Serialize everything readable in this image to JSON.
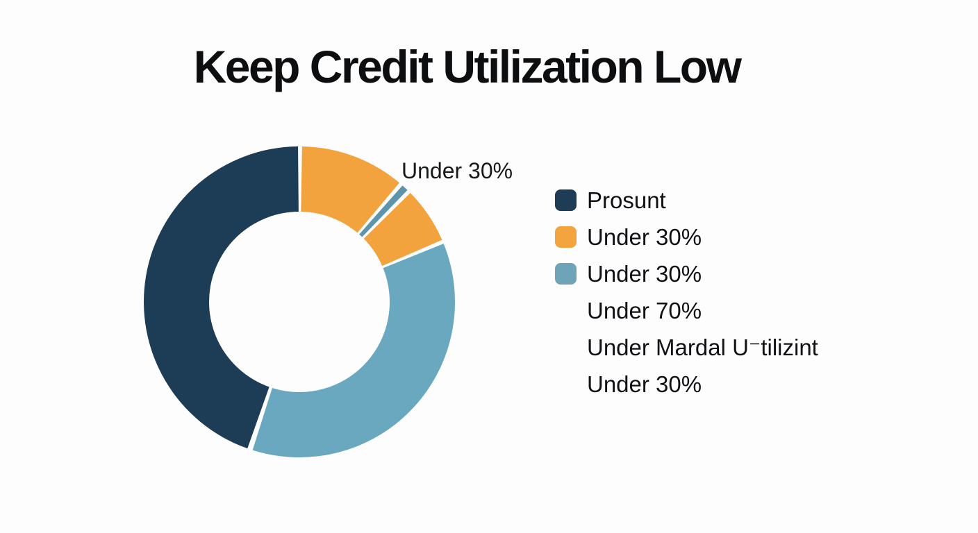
{
  "title": "Keep Credit Utilization Low",
  "annotation": {
    "text": "Under 30%"
  },
  "legend": {
    "items": [
      {
        "label": "Prosunt",
        "swatch": "#1e3c55"
      },
      {
        "label": "Under 30%",
        "swatch": "#f3a43e"
      },
      {
        "label": "Under 30%",
        "swatch": "#6fa4b8"
      },
      {
        "label": "Under 70%",
        "swatch": ""
      },
      {
        "label": "Under Mardal U⁻tilizint",
        "swatch": ""
      },
      {
        "label": "Under 30%",
        "swatch": ""
      }
    ]
  },
  "chart_data": {
    "type": "pie",
    "subtype": "donut",
    "title": "Keep Credit Utilization Low",
    "inner_radius_ratio": 0.58,
    "angle_reference": "degrees clockwise from 12 o'clock",
    "slices": [
      {
        "name": "orange-top",
        "color": "#f2a33d",
        "start_deg": 1.0,
        "end_deg": 40.0,
        "percent": 10.8
      },
      {
        "name": "blue-sliver",
        "color": "#5f95ab",
        "start_deg": 41.5,
        "end_deg": 44.0,
        "percent": 0.7
      },
      {
        "name": "orange-lower",
        "color": "#f2a33d",
        "start_deg": 45.5,
        "end_deg": 66.5,
        "percent": 5.8
      },
      {
        "name": "light-blue",
        "color": "#69a8be",
        "start_deg": 68.0,
        "end_deg": 197.5,
        "percent": 36.0
      },
      {
        "name": "navy",
        "color": "#1d3c55",
        "start_deg": 199.5,
        "end_deg": 359.5,
        "percent": 44.4
      }
    ],
    "annotations": [
      {
        "text": "Under 30%",
        "near": "blue-sliver"
      }
    ],
    "legend_position": "right",
    "legend_entries": [
      "Prosunt",
      "Under 30%",
      "Under 30%",
      "Under 70%",
      "Under Mardal U⁻tilizint",
      "Under 30%"
    ]
  },
  "colors": {
    "background": "#fdfdfd",
    "title_text": "#0d0e10",
    "legend_text": "#101114",
    "annotation_text": "#16181a"
  }
}
